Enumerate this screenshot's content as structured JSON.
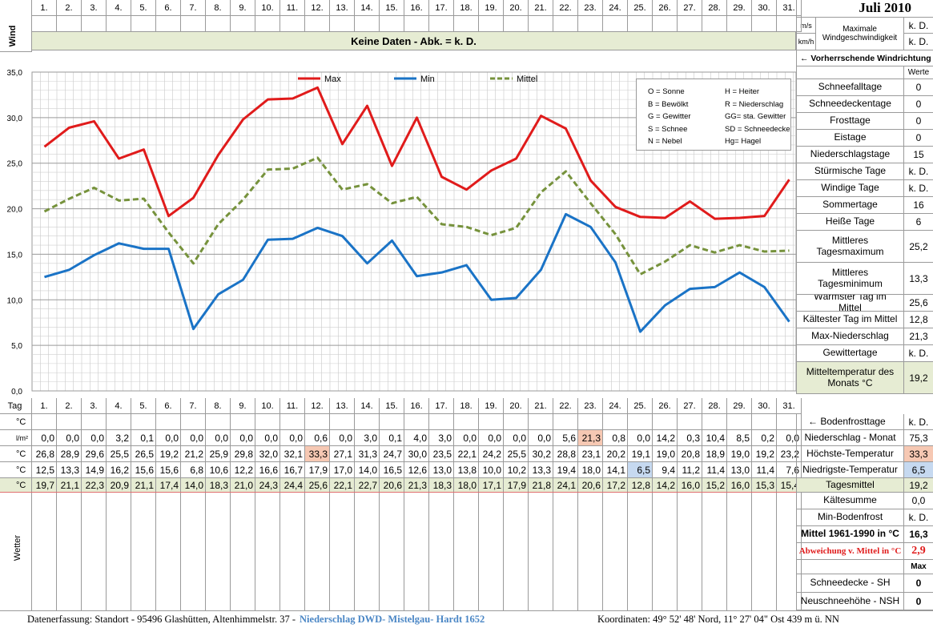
{
  "title": "Juli 2010",
  "days": [
    "1.",
    "2.",
    "3.",
    "4.",
    "5.",
    "6.",
    "7.",
    "8.",
    "9.",
    "10.",
    "11.",
    "12.",
    "13.",
    "14.",
    "15.",
    "16.",
    "17.",
    "18.",
    "19.",
    "20.",
    "21.",
    "22.",
    "23.",
    "24.",
    "25.",
    "26.",
    "27.",
    "28.",
    "29.",
    "30.",
    "31."
  ],
  "wind": {
    "label": "Wind",
    "no_data": "Keine Daten - Abk. = k. D.",
    "unit_ms": "m/s",
    "unit_kmh": "km/h",
    "max_label": "Maximale Windgeschwindigkeit",
    "val_ms": "k. D.",
    "val_kmh": "k. D.",
    "direction_label": "← Vorherrschende Windrichtung"
  },
  "legend_codes": [
    [
      "O = Sonne",
      "H = Heiter"
    ],
    [
      "B = Bewölkt",
      "R = Niederschlag"
    ],
    [
      "G = Gewitter",
      "GG= sta. Gewitter"
    ],
    [
      "S = Schnee",
      "SD = Schneedecke"
    ],
    [
      "N = Nebel",
      "Hg= Hagel"
    ]
  ],
  "chart_data": {
    "type": "line",
    "categories": [
      "1.",
      "2.",
      "3.",
      "4.",
      "5.",
      "6.",
      "7.",
      "8.",
      "9.",
      "10.",
      "11.",
      "12.",
      "13.",
      "14.",
      "15.",
      "16.",
      "17.",
      "18.",
      "19.",
      "20.",
      "21.",
      "22.",
      "23.",
      "24.",
      "25.",
      "26.",
      "27.",
      "28.",
      "29.",
      "30.",
      "31."
    ],
    "series": [
      {
        "name": "Max",
        "color": "#e01b1b",
        "values": [
          26.8,
          28.9,
          29.6,
          25.5,
          26.5,
          19.2,
          21.2,
          25.9,
          29.8,
          32.0,
          32.1,
          33.3,
          27.1,
          31.3,
          24.7,
          30.0,
          23.5,
          22.1,
          24.2,
          25.5,
          30.2,
          28.8,
          23.1,
          20.2,
          19.1,
          19.0,
          20.8,
          18.9,
          19.0,
          19.2,
          23.2
        ]
      },
      {
        "name": "Min",
        "color": "#1a73c6",
        "values": [
          12.5,
          13.3,
          14.9,
          16.2,
          15.6,
          15.6,
          6.8,
          10.6,
          12.2,
          16.6,
          16.7,
          17.9,
          17.0,
          14.0,
          16.5,
          12.6,
          13.0,
          13.8,
          10.0,
          10.2,
          13.3,
          19.4,
          18.0,
          14.1,
          6.5,
          9.4,
          11.2,
          11.4,
          13.0,
          11.4,
          7.6
        ]
      },
      {
        "name": "Mittel",
        "color": "#76923c",
        "dashed": true,
        "values": [
          19.7,
          21.1,
          22.3,
          20.9,
          21.1,
          17.4,
          14.0,
          18.3,
          21.0,
          24.3,
          24.4,
          25.6,
          22.1,
          22.7,
          20.6,
          21.3,
          18.3,
          18.0,
          17.1,
          17.9,
          21.8,
          24.1,
          20.6,
          17.2,
          12.8,
          14.2,
          16.0,
          15.2,
          16.0,
          15.3,
          15.4
        ]
      }
    ],
    "ylim": [
      0,
      35
    ],
    "yticks": [
      "0,0",
      "5,0",
      "10,0",
      "15,0",
      "20,0",
      "25,0",
      "30,0",
      "35,0"
    ],
    "grid": true,
    "legend_position": "top"
  },
  "table": {
    "tag_label": "Tag",
    "unit_c": "°C",
    "unit_lm2": "l/m²",
    "niederschlag": [
      "0,0",
      "0,0",
      "0,0",
      "3,2",
      "0,1",
      "0,0",
      "0,0",
      "0,0",
      "0,0",
      "0,0",
      "0,0",
      "0,6",
      "0,0",
      "3,0",
      "0,1",
      "4,0",
      "3,0",
      "0,0",
      "0,0",
      "0,0",
      "0,0",
      "5,6",
      "21,3",
      "0,8",
      "0,0",
      "14,2",
      "0,3",
      "10,4",
      "8,5",
      "0,2",
      "0,0"
    ],
    "hoechst": [
      "26,8",
      "28,9",
      "29,6",
      "25,5",
      "26,5",
      "19,2",
      "21,2",
      "25,9",
      "29,8",
      "32,0",
      "32,1",
      "33,3",
      "27,1",
      "31,3",
      "24,7",
      "30,0",
      "23,5",
      "22,1",
      "24,2",
      "25,5",
      "30,2",
      "28,8",
      "23,1",
      "20,2",
      "19,1",
      "19,0",
      "20,8",
      "18,9",
      "19,0",
      "19,2",
      "23,2"
    ],
    "niedrigst": [
      "12,5",
      "13,3",
      "14,9",
      "16,2",
      "15,6",
      "15,6",
      "6,8",
      "10,6",
      "12,2",
      "16,6",
      "16,7",
      "17,9",
      "17,0",
      "14,0",
      "16,5",
      "12,6",
      "13,0",
      "13,8",
      "10,0",
      "10,2",
      "13,3",
      "19,4",
      "18,0",
      "14,1",
      "6,5",
      "9,4",
      "11,2",
      "11,4",
      "13,0",
      "11,4",
      "7,6"
    ],
    "mittel": [
      "19,7",
      "21,1",
      "22,3",
      "20,9",
      "21,1",
      "17,4",
      "14,0",
      "18,3",
      "21,0",
      "24,3",
      "24,4",
      "25,6",
      "22,1",
      "22,7",
      "20,6",
      "21,3",
      "18,3",
      "18,0",
      "17,1",
      "17,9",
      "21,8",
      "24,1",
      "20,6",
      "17,2",
      "12,8",
      "14,2",
      "16,0",
      "15,2",
      "16,0",
      "15,3",
      "15,4"
    ],
    "wetter_label": "Wetter"
  },
  "stats": {
    "werte_label": "Werte",
    "rows": [
      {
        "label": "Schneefalltage",
        "value": "0"
      },
      {
        "label": "Schneedeckentage",
        "value": "0"
      },
      {
        "label": "Frosttage",
        "value": "0"
      },
      {
        "label": "Eistage",
        "value": "0"
      },
      {
        "label": "Niederschlagstage",
        "value": "15"
      },
      {
        "label": "Stürmische Tage",
        "value": "k. D."
      },
      {
        "label": "Windige Tage",
        "value": "k. D."
      },
      {
        "label": "Sommertage",
        "value": "16"
      },
      {
        "label": "Heiße Tage",
        "value": "6"
      },
      {
        "label": "Mittleres Tagesmaximum",
        "value": "25,2"
      },
      {
        "label": "Mittleres Tagesminimum",
        "value": "13,3"
      },
      {
        "label": "Wärmster Tag im Mittel",
        "value": "25,6"
      },
      {
        "label": "Kältester Tag im Mittel",
        "value": "12,8"
      },
      {
        "label": "Max-Niederschlag",
        "value": "21,3"
      },
      {
        "label": "Gewittertage",
        "value": "k. D."
      },
      {
        "label": "Mitteltemperatur des Monats °C",
        "value": "19,2"
      }
    ],
    "bodenfrost_label": "← Bodenfrosttage",
    "bodenfrost_value": "k. D.",
    "nied_monat_label": "Niederschlag - Monat",
    "nied_monat_value": "75,3",
    "hoechst_label": "Höchste-Temperatur",
    "hoechst_value": "33,3",
    "niedrigst_label": "Niedrigste-Temperatur",
    "niedrigst_value": "6,5",
    "tagesmittel_label": "Tagesmittel",
    "tagesmittel_value": "19,2",
    "kaeltesumme_label": "Kältesumme",
    "kaeltesumme_value": "0,0",
    "minboden_label": "Min-Bodenfrost",
    "minboden_value": "k. D.",
    "mittel6190_label": "Mittel 1961-1990 in °C",
    "mittel6190_value": "16,3",
    "abweichung_label": "Abweichung v. Mittel in °C",
    "abweichung_value": "2,9",
    "max_label": "Max",
    "schneedecke_label": "Schneedecke -   SH",
    "schneedecke_value": "0",
    "neuschnee_label": "Neuschneehöhe - NSH",
    "neuschnee_value": "0"
  },
  "footer": {
    "left": "Datenerfassung:  Standort -   95496  Glashütten, Altenhimmelstr. 37 -",
    "highlight": "Niederschlag DWD- Mistelgau- Hardt 1652",
    "right": "Koordinaten:  49° 52' 48' Nord,   11° 27' 04\" Ost   439 m ü. NN"
  }
}
